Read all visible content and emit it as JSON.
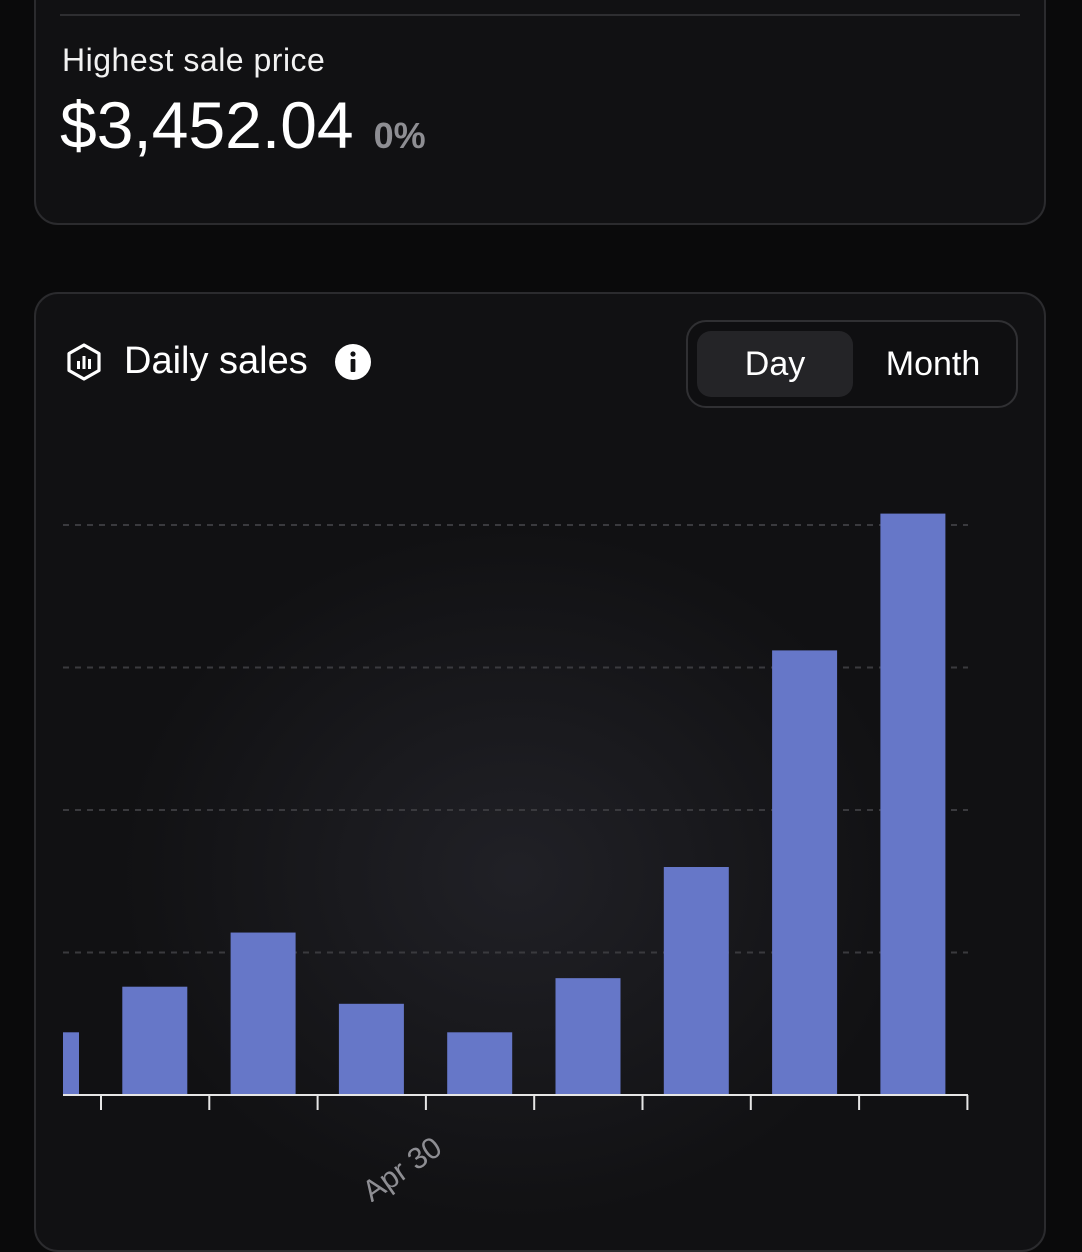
{
  "stats": {
    "label": "Highest sale price",
    "value": "$3,452.04",
    "change": "0%"
  },
  "chart_card": {
    "title": "Daily sales",
    "header_icon": "hexagon-chart-icon",
    "info_icon": "info-icon",
    "toggle": {
      "options": [
        "Day",
        "Month"
      ],
      "selected": "Day"
    }
  },
  "colors": {
    "bar": "#6677c8",
    "background": "#0a0a0b",
    "card": "#111113",
    "muted": "#8e8e93"
  },
  "chart_data": {
    "type": "bar",
    "title": "Daily sales",
    "grid": "horizontal-dashed",
    "legend": "none",
    "x_tick_labels": [
      {
        "index": 3,
        "label": "Apr 30"
      }
    ],
    "ylim": [
      0,
      100
    ],
    "values": [
      11,
      19,
      28.5,
      16,
      11,
      20.5,
      40,
      78,
      102
    ]
  }
}
